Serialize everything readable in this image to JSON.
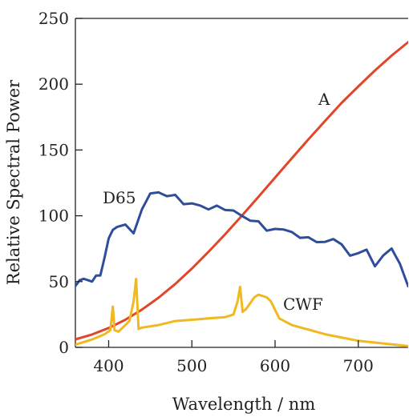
{
  "chart_data": {
    "type": "line",
    "xlabel": "Wavelength / nm",
    "ylabel": "Relative Spectral Power",
    "xlim": [
      360,
      760
    ],
    "ylim": [
      0,
      250
    ],
    "xticks": [
      400,
      500,
      600,
      700
    ],
    "yticks": [
      0,
      50,
      100,
      150,
      200,
      250
    ],
    "grid": false,
    "series": [
      {
        "name": "A",
        "color": "#e0472a",
        "x": [
          360,
          380,
          400,
          420,
          440,
          460,
          480,
          500,
          520,
          540,
          560,
          580,
          600,
          620,
          640,
          660,
          680,
          700,
          720,
          740,
          760
        ],
        "y": [
          6.1,
          9.8,
          14.7,
          21.0,
          28.7,
          37.8,
          48.2,
          59.9,
          72.6,
          86.0,
          100.0,
          114.4,
          129.0,
          143.6,
          158.0,
          172.1,
          185.8,
          198.3,
          210.4,
          221.7,
          232.0
        ]
      },
      {
        "name": "D65",
        "color": "#2e4d9b",
        "x": [
          360,
          365,
          370,
          380,
          385,
          390,
          395,
          400,
          405,
          410,
          420,
          425,
          430,
          435,
          440,
          445,
          450,
          455,
          460,
          465,
          470,
          475,
          480,
          485,
          490,
          500,
          510,
          520,
          530,
          540,
          550,
          560,
          570,
          580,
          590,
          600,
          610,
          620,
          630,
          640,
          650,
          660,
          670,
          680,
          690,
          700,
          710,
          720,
          725,
          730,
          735,
          740,
          745,
          750,
          755,
          760
        ],
        "y": [
          46.6,
          51.0,
          52.1,
          50.0,
          54.6,
          54.6,
          68.0,
          82.8,
          89.3,
          91.5,
          93.4,
          90.0,
          86.7,
          95.8,
          104.9,
          110.9,
          117.0,
          117.4,
          117.8,
          116.3,
          114.9,
          115.4,
          115.9,
          112.4,
          108.8,
          109.4,
          107.8,
          104.8,
          107.7,
          104.4,
          104.0,
          100.0,
          96.3,
          95.8,
          88.7,
          90.0,
          89.6,
          87.7,
          83.3,
          83.7,
          80.0,
          80.2,
          82.3,
          78.3,
          69.7,
          71.6,
          74.3,
          61.6,
          65.7,
          69.9,
          72.5,
          75.1,
          69.3,
          63.6,
          55.0,
          46.4
        ]
      },
      {
        "name": "CWF",
        "color": "#f0b920",
        "x": [
          360,
          380,
          395,
          402,
          405,
          407,
          412,
          425,
          430,
          433,
          436,
          440,
          460,
          480,
          500,
          520,
          540,
          550,
          555,
          558,
          561,
          565,
          575,
          580,
          590,
          595,
          605,
          620,
          660,
          700,
          730,
          760
        ],
        "y": [
          2,
          6,
          10,
          13,
          31,
          13,
          12,
          20,
          35,
          52,
          14,
          15,
          17,
          20,
          21,
          22,
          23,
          25,
          35,
          46,
          27,
          29,
          38,
          40,
          38,
          35,
          22,
          17,
          10,
          5,
          3,
          1
        ]
      }
    ]
  }
}
